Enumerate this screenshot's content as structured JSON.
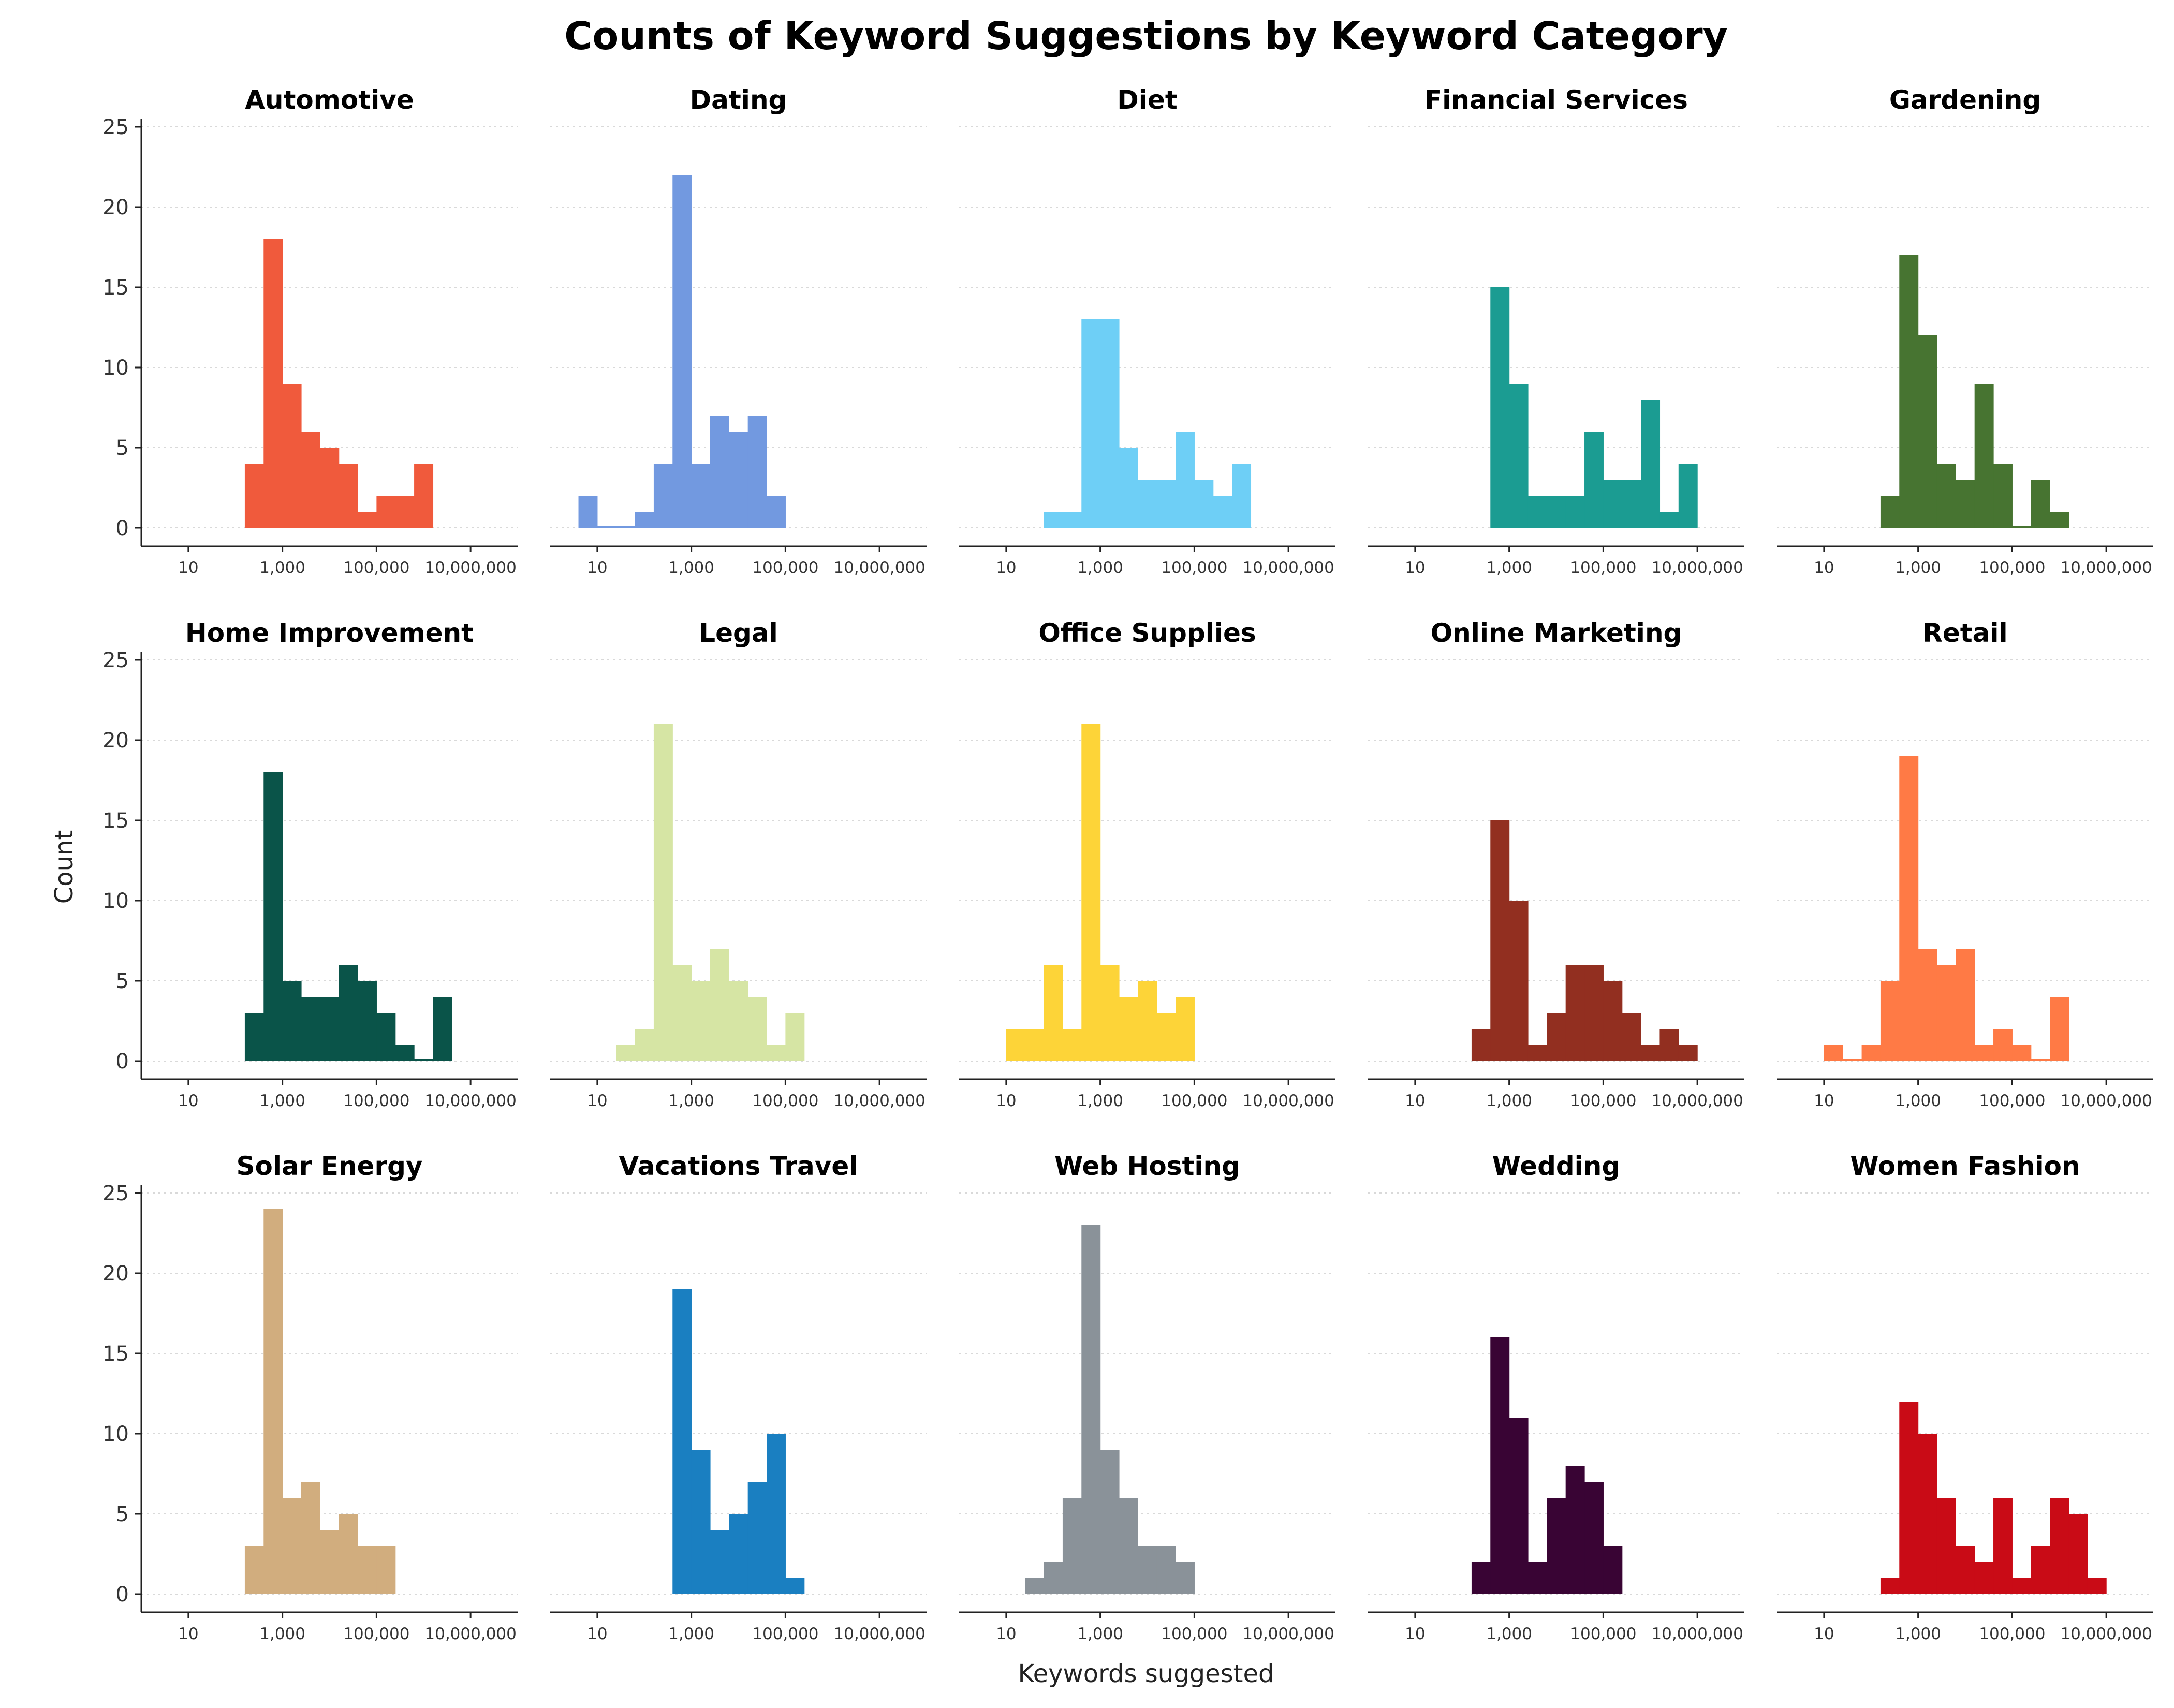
{
  "chart_data": {
    "type": "histogram",
    "title": "Counts of Keyword Suggestions by Keyword Category",
    "xlabel": "Keywords suggested",
    "ylabel": "Count",
    "x_scale": "log10",
    "x_range": [
      1,
      100000000
    ],
    "x_ticks": [
      10,
      1000,
      100000,
      10000000
    ],
    "x_tick_labels": [
      "10",
      "1,000",
      "100,000",
      "10,000,000"
    ],
    "ylim": [
      0,
      25
    ],
    "y_ticks": [
      0,
      5,
      10,
      15,
      20,
      25
    ],
    "grid": "horizontal dotted",
    "bin_width_log10": 0.4,
    "panels": [
      {
        "name": "Automotive",
        "color": "#F05A3C",
        "bin_start_log10": 2.2,
        "counts": [
          4,
          18,
          9,
          6,
          5,
          4,
          1,
          2,
          2,
          4
        ]
      },
      {
        "name": "Dating",
        "color": "#7299E0",
        "bin_start_log10": 0.6,
        "counts": [
          2,
          0,
          0,
          1,
          4,
          22,
          4,
          7,
          6,
          7,
          2
        ]
      },
      {
        "name": "Diet",
        "color": "#6ECFF6",
        "bin_start_log10": 1.8,
        "counts": [
          1,
          1,
          13,
          13,
          5,
          3,
          3,
          6,
          3,
          2,
          4
        ]
      },
      {
        "name": "Financial Services",
        "color": "#1B9C92",
        "bin_start_log10": 2.6,
        "counts": [
          15,
          9,
          2,
          2,
          2,
          6,
          3,
          3,
          8,
          1,
          4
        ]
      },
      {
        "name": "Gardening",
        "color": "#477431",
        "bin_start_log10": 2.2,
        "counts": [
          2,
          17,
          12,
          4,
          3,
          9,
          4,
          0,
          3,
          1
        ]
      },
      {
        "name": "Home Improvement",
        "color": "#0A5449",
        "bin_start_log10": 2.2,
        "counts": [
          3,
          18,
          5,
          4,
          4,
          6,
          5,
          3,
          1,
          0,
          4
        ]
      },
      {
        "name": "Legal",
        "color": "#D6E5A4",
        "bin_start_log10": 1.4,
        "counts": [
          1,
          2,
          21,
          6,
          5,
          7,
          5,
          4,
          1,
          3
        ]
      },
      {
        "name": "Office Supplies",
        "color": "#FDD438",
        "bin_start_log10": 1.0,
        "counts": [
          2,
          2,
          6,
          2,
          21,
          6,
          4,
          5,
          3,
          4
        ]
      },
      {
        "name": "Online Marketing",
        "color": "#922F20",
        "bin_start_log10": 2.2,
        "counts": [
          2,
          15,
          10,
          1,
          3,
          6,
          6,
          5,
          3,
          1,
          2,
          1
        ]
      },
      {
        "name": "Retail",
        "color": "#FF7A45",
        "bin_start_log10": 1.0,
        "counts": [
          1,
          0,
          1,
          5,
          19,
          7,
          6,
          7,
          1,
          2,
          1,
          0,
          4
        ]
      },
      {
        "name": "Solar Energy",
        "color": "#D1AD7E",
        "bin_start_log10": 2.2,
        "counts": [
          3,
          24,
          6,
          7,
          4,
          5,
          3,
          3
        ]
      },
      {
        "name": "Vacations Travel",
        "color": "#1A7FC1",
        "bin_start_log10": 2.6,
        "counts": [
          19,
          9,
          4,
          5,
          7,
          10,
          1
        ]
      },
      {
        "name": "Web Hosting",
        "color": "#8A9299",
        "bin_start_log10": 1.4,
        "counts": [
          1,
          2,
          6,
          23,
          9,
          6,
          3,
          3,
          2
        ]
      },
      {
        "name": "Wedding",
        "color": "#390434",
        "bin_start_log10": 2.2,
        "counts": [
          2,
          16,
          11,
          2,
          6,
          8,
          7,
          3
        ]
      },
      {
        "name": "Women Fashion",
        "color": "#C90B16",
        "bin_start_log10": 2.2,
        "counts": [
          1,
          12,
          10,
          6,
          3,
          2,
          6,
          1,
          3,
          6,
          5,
          1
        ]
      }
    ]
  }
}
